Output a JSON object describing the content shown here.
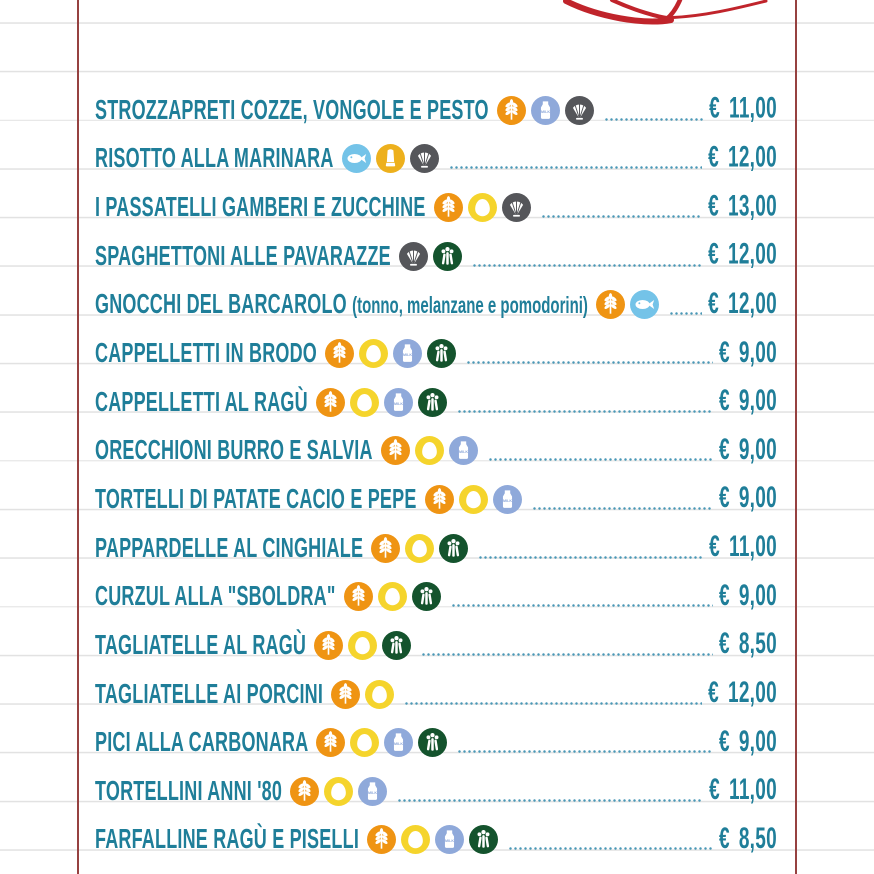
{
  "page": {
    "kind": "restaurant-menu-page",
    "colors": {
      "background": "#ffffff",
      "ruled_line": "#e2e2e2",
      "margin_line": "#964140",
      "text": "#1f7e99",
      "dotted_leader": "#4a98b6",
      "flourish_red": "#c0242b"
    }
  },
  "allergen_icons": {
    "gluten": {
      "icon": "wheat-icon",
      "color": "#ef9413"
    },
    "egg": {
      "icon": "egg-icon",
      "color": "#f5d42c"
    },
    "milk": {
      "icon": "milk-bottle-icon",
      "color": "#8fa9da"
    },
    "molluscs": {
      "icon": "shell-icon",
      "color": "#55565a"
    },
    "celery": {
      "icon": "celery-icon",
      "color": "#14532d"
    },
    "fish": {
      "icon": "fish-icon",
      "color": "#74c3e8"
    },
    "sulphites": {
      "icon": "bottle-icon",
      "color": "#edb01d"
    }
  },
  "menu": {
    "currency": "€",
    "items": [
      {
        "name": "STROZZAPRETI COZZE, VONGOLE E PESTO",
        "note": "",
        "allergens": [
          "gluten",
          "milk",
          "molluscs"
        ],
        "price": "11,00"
      },
      {
        "name": "RISOTTO ALLA MARINARA",
        "note": "",
        "allergens": [
          "fish",
          "sulphites",
          "molluscs"
        ],
        "price": "12,00"
      },
      {
        "name": "I PASSATELLI GAMBERI E ZUCCHINE",
        "note": "",
        "allergens": [
          "gluten",
          "egg",
          "molluscs"
        ],
        "price": "13,00"
      },
      {
        "name": "SPAGHETTONI ALLE PAVARAZZE",
        "note": "",
        "allergens": [
          "molluscs",
          "celery"
        ],
        "price": "12,00"
      },
      {
        "name": "GNOCCHI DEL BARCAROLO",
        "note": "(tonno, melanzane e pomodorini)",
        "allergens": [
          "gluten",
          "fish"
        ],
        "price": "12,00"
      },
      {
        "name": "CAPPELLETTI IN BRODO",
        "note": "",
        "allergens": [
          "gluten",
          "egg",
          "milk",
          "celery"
        ],
        "price": "9,00"
      },
      {
        "name": "CAPPELLETTI AL RAGÙ",
        "note": "",
        "allergens": [
          "gluten",
          "egg",
          "milk",
          "celery"
        ],
        "price": "9,00"
      },
      {
        "name": "ORECCHIONI BURRO E SALVIA",
        "note": "",
        "allergens": [
          "gluten",
          "egg",
          "milk"
        ],
        "price": "9,00"
      },
      {
        "name": "TORTELLI DI PATATE CACIO E PEPE",
        "note": "",
        "allergens": [
          "gluten",
          "egg",
          "milk"
        ],
        "price": "9,00"
      },
      {
        "name": "PAPPARDELLE AL CINGHIALE",
        "note": "",
        "allergens": [
          "gluten",
          "egg",
          "celery"
        ],
        "price": "11,00"
      },
      {
        "name": "CURZUL ALLA \"SBOLDRA\"",
        "note": "",
        "allergens": [
          "gluten",
          "egg",
          "celery"
        ],
        "price": "9,00"
      },
      {
        "name": "TAGLIATELLE AL RAGÙ",
        "note": "",
        "allergens": [
          "gluten",
          "egg",
          "celery"
        ],
        "price": "8,50"
      },
      {
        "name": "TAGLIATELLE AI PORCINI",
        "note": "",
        "allergens": [
          "gluten",
          "egg"
        ],
        "price": "12,00"
      },
      {
        "name": "PICI ALLA CARBONARA",
        "note": "",
        "allergens": [
          "gluten",
          "egg",
          "milk",
          "celery"
        ],
        "price": "9,00"
      },
      {
        "name": "TORTELLINI ANNI '80",
        "note": "",
        "allergens": [
          "gluten",
          "egg",
          "milk"
        ],
        "price": "11,00"
      },
      {
        "name": "FARFALLINE RAGÙ E PISELLI",
        "note": "",
        "allergens": [
          "gluten",
          "egg",
          "milk",
          "celery"
        ],
        "price": "8,50"
      }
    ]
  }
}
